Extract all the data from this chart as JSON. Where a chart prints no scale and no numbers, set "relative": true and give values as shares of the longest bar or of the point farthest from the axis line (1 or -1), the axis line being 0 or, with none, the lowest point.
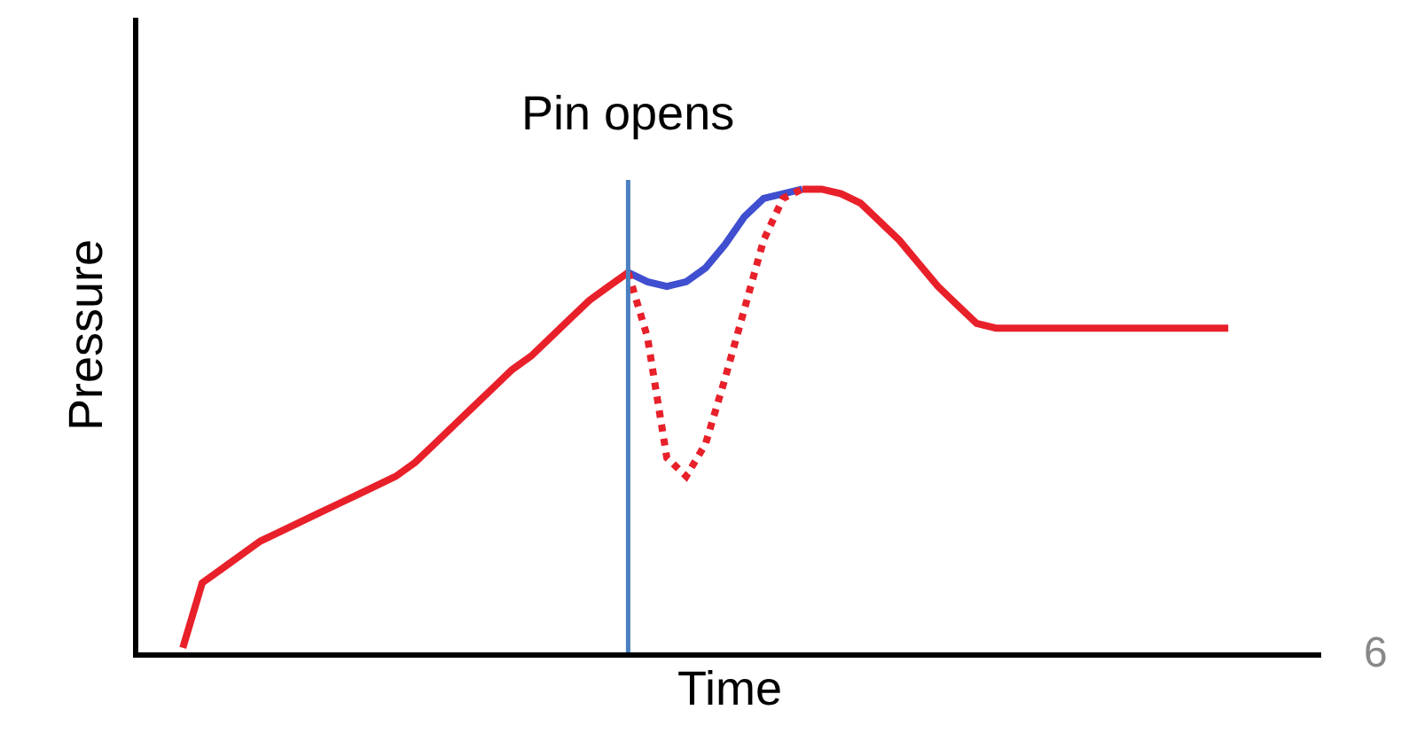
{
  "chart_data": {
    "type": "line",
    "relative": true,
    "xlabel": "Time",
    "ylabel": "Pressure",
    "categories": [
      null,
      null,
      null,
      null,
      null,
      null,
      null,
      null,
      null,
      null,
      null,
      null,
      null,
      null,
      null,
      null,
      null,
      null,
      null,
      null,
      null,
      null,
      null,
      null,
      null,
      null,
      null,
      null,
      null,
      null,
      null,
      null,
      null,
      null,
      null,
      null,
      null,
      null,
      null,
      null,
      null,
      null,
      null,
      null,
      null,
      null,
      null,
      null,
      null,
      null,
      null,
      null,
      null,
      null,
      null
    ],
    "series": [
      {
        "color": "#e8202a",
        "line_style": "solid",
        "values": [
          0.01,
          0.15,
          0.18,
          0.21,
          0.24,
          0.26,
          0.28,
          0.3,
          0.32,
          0.34,
          0.36,
          0.38,
          0.41,
          0.45,
          0.49,
          0.53,
          0.57,
          0.61,
          0.64,
          0.68,
          0.72,
          0.76,
          0.79,
          0.82,
          null,
          null,
          null,
          null,
          null,
          null,
          null,
          null,
          null,
          null,
          null,
          null,
          null,
          null,
          null,
          null,
          null,
          null,
          null,
          null,
          null,
          null,
          null,
          null,
          null,
          null,
          null,
          null,
          null,
          null,
          null
        ]
      },
      {
        "color": "#3f4fcf",
        "line_style": "solid",
        "values": [
          null,
          null,
          null,
          null,
          null,
          null,
          null,
          null,
          null,
          null,
          null,
          null,
          null,
          null,
          null,
          null,
          null,
          null,
          null,
          null,
          null,
          null,
          null,
          0.82,
          0.8,
          0.79,
          0.8,
          0.83,
          0.88,
          0.94,
          0.98,
          0.99,
          1.0,
          null,
          null,
          null,
          null,
          null,
          null,
          null,
          null,
          null,
          null,
          null,
          null,
          null,
          null,
          null,
          null,
          null,
          null,
          null,
          null,
          null,
          null
        ]
      },
      {
        "color": "#e8202a",
        "line_style": "dotted",
        "values": [
          null,
          null,
          null,
          null,
          null,
          null,
          null,
          null,
          null,
          null,
          null,
          null,
          null,
          null,
          null,
          null,
          null,
          null,
          null,
          null,
          null,
          null,
          null,
          0.82,
          0.68,
          0.42,
          0.38,
          0.45,
          0.59,
          0.74,
          0.89,
          0.98,
          1.0,
          null,
          null,
          null,
          null,
          null,
          null,
          null,
          null,
          null,
          null,
          null,
          null,
          null,
          null,
          null,
          null,
          null,
          null,
          null,
          null,
          null,
          null
        ]
      },
      {
        "color": "#e8202a",
        "line_style": "solid",
        "values": [
          null,
          null,
          null,
          null,
          null,
          null,
          null,
          null,
          null,
          null,
          null,
          null,
          null,
          null,
          null,
          null,
          null,
          null,
          null,
          null,
          null,
          null,
          null,
          null,
          null,
          null,
          null,
          null,
          null,
          null,
          null,
          null,
          1.0,
          1.0,
          0.99,
          0.97,
          0.93,
          0.89,
          0.84,
          0.79,
          0.75,
          0.71,
          0.7,
          0.7,
          0.7,
          0.7,
          0.7,
          0.7,
          0.7,
          0.7,
          0.7,
          0.7,
          0.7,
          0.7,
          0.7
        ]
      }
    ],
    "annotations": [
      "Pin opens",
      "6"
    ]
  }
}
